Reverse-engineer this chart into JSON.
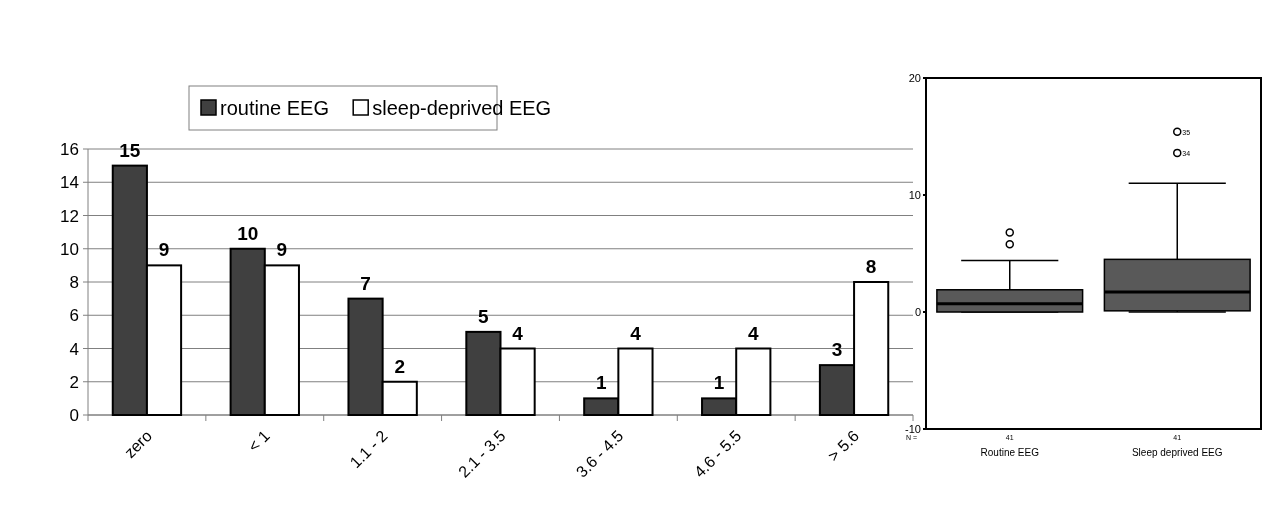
{
  "chart_data": [
    {
      "type": "bar",
      "categories": [
        "zero",
        "< 1",
        "1.1 - 2",
        "2.1 - 3.5",
        "3.6 - 4.5",
        "4.6 - 5.5",
        "> 5.6"
      ],
      "series": [
        {
          "name": "routine EEG",
          "color": "#404040",
          "values": [
            15,
            10,
            7,
            5,
            1,
            1,
            3
          ]
        },
        {
          "name": "sleep-deprived EEG",
          "color": "#ffffff",
          "values": [
            9,
            9,
            2,
            4,
            4,
            4,
            8
          ]
        }
      ],
      "ylim": [
        0,
        16
      ],
      "yticks": [
        0,
        2,
        4,
        6,
        8,
        10,
        12,
        14,
        16
      ],
      "grid": "y",
      "legend": "top",
      "data_labels": true
    },
    {
      "type": "box",
      "categories": [
        "Routine EEG",
        "Sleep deprived EEG"
      ],
      "series": [
        {
          "color": "#595959",
          "boxes": [
            {
              "low": 0,
              "q1": 0,
              "median": 0.7,
              "q3": 1.9,
              "high": 4.4,
              "outliers": [
                5.8,
                6.8
              ]
            },
            {
              "low": 0,
              "q1": 0.1,
              "median": 1.7,
              "q3": 4.5,
              "high": 11,
              "outliers": [
                13.6,
                15.4
              ]
            }
          ]
        }
      ],
      "ylim": [
        -10,
        20
      ],
      "yticks": [
        -10,
        0,
        10,
        20
      ],
      "annotations": [
        "N =",
        "41",
        "41",
        "35",
        "34"
      ]
    }
  ]
}
